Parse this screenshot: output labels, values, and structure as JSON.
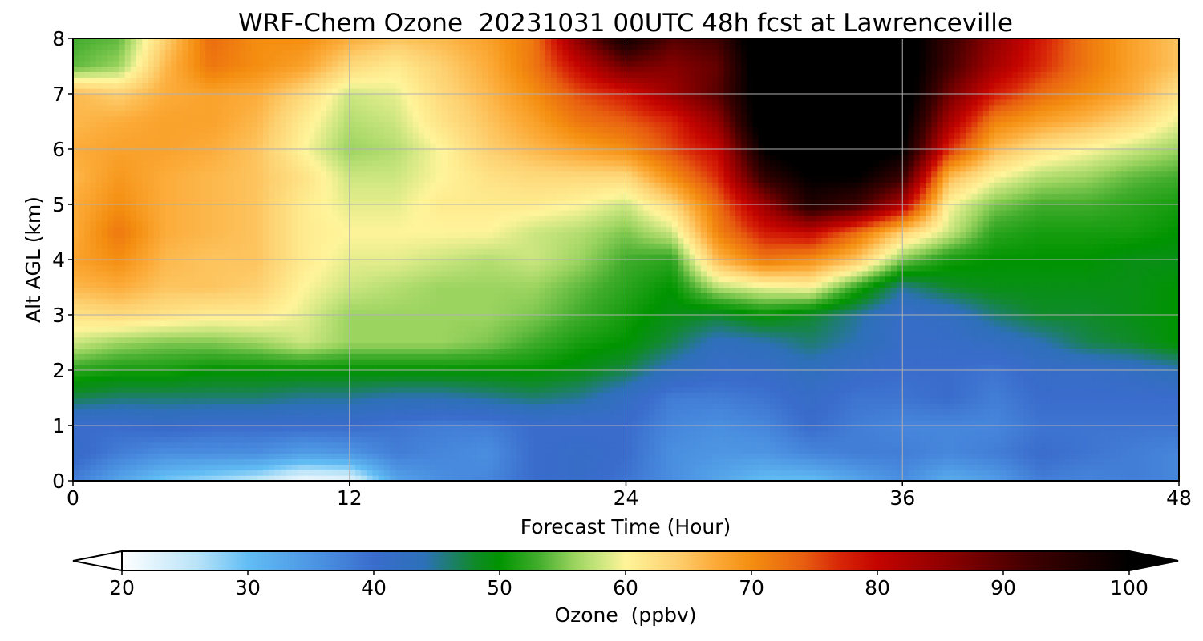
{
  "chart_data": {
    "type": "heatmap",
    "title": "WRF-Chem Ozone  20231031 00UTC 48h fcst at Lawrenceville",
    "xlabel": "Forecast Time (Hour)",
    "ylabel": "Alt AGL (km)",
    "xlim": [
      0,
      48
    ],
    "ylim": [
      0,
      8
    ],
    "x_ticks": [
      "0",
      "12",
      "24",
      "36",
      "48"
    ],
    "y_ticks": [
      "0",
      "1",
      "2",
      "3",
      "4",
      "5",
      "6",
      "7",
      "8"
    ],
    "grid": true,
    "colorbar": {
      "label": "Ozone  (ppbv)",
      "range": [
        20,
        100
      ],
      "ticks": [
        "20",
        "30",
        "40",
        "50",
        "60",
        "70",
        "80",
        "90",
        "100"
      ],
      "extend": "both",
      "placement": "bottom",
      "color_stops": [
        [
          20,
          "#ffffff"
        ],
        [
          26,
          "#b8e3f8"
        ],
        [
          30,
          "#62bdf4"
        ],
        [
          36,
          "#4a8fe0"
        ],
        [
          40,
          "#3a6ccc"
        ],
        [
          44,
          "#2d70b8"
        ],
        [
          48,
          "#108a2a"
        ],
        [
          50,
          "#009400"
        ],
        [
          53,
          "#40ac2c"
        ],
        [
          56,
          "#9cd460"
        ],
        [
          58,
          "#cce680"
        ],
        [
          60,
          "#fff49a"
        ],
        [
          64,
          "#fdd070"
        ],
        [
          67,
          "#fcac3a"
        ],
        [
          70,
          "#f48e10"
        ],
        [
          74,
          "#e86010"
        ],
        [
          77,
          "#d82608"
        ],
        [
          80,
          "#c40400"
        ],
        [
          86,
          "#880000"
        ],
        [
          92,
          "#400000"
        ],
        [
          100,
          "#000000"
        ]
      ]
    },
    "x": [
      0,
      2,
      4,
      6,
      8,
      10,
      12,
      14,
      16,
      18,
      20,
      22,
      24,
      26,
      28,
      30,
      32,
      34,
      36,
      38,
      40,
      42,
      44,
      46,
      48
    ],
    "y": [
      0,
      0.5,
      1,
      1.5,
      2,
      2.5,
      3,
      3.5,
      4,
      4.5,
      5,
      5.5,
      6,
      6.5,
      7,
      7.5,
      8
    ],
    "z": [
      [
        38,
        33,
        29,
        27,
        25,
        21,
        22,
        33,
        36,
        37,
        40,
        41,
        39,
        36,
        33,
        30,
        30,
        33,
        36,
        32,
        34,
        38,
        37,
        38,
        37
      ],
      [
        41,
        38,
        36,
        36,
        36,
        34,
        35,
        38,
        37,
        36,
        40,
        41,
        40,
        36,
        35,
        35,
        37,
        38,
        38,
        37,
        38,
        40,
        39,
        38,
        37
      ],
      [
        40,
        40,
        41,
        40,
        40,
        40,
        40,
        39,
        38,
        38,
        40,
        40,
        40,
        37,
        36,
        37,
        40,
        38,
        37,
        37,
        37,
        39,
        39,
        39,
        39
      ],
      [
        47,
        46,
        46,
        46,
        46,
        45,
        45,
        44,
        44,
        45,
        46,
        45,
        42,
        38,
        38,
        39,
        41,
        39,
        39,
        40,
        38,
        40,
        40,
        40,
        40
      ],
      [
        52,
        51,
        51,
        50,
        50,
        50,
        50,
        50,
        50,
        50,
        50,
        49,
        47,
        43,
        41,
        41,
        43,
        41,
        40,
        40,
        39,
        41,
        41,
        42,
        44
      ],
      [
        58,
        56,
        55,
        55,
        56,
        58,
        56,
        56,
        56,
        55,
        53,
        51,
        50,
        47,
        43,
        44,
        46,
        44,
        41,
        41,
        42,
        44,
        47,
        48,
        50
      ],
      [
        62,
        63,
        62,
        61,
        61,
        59,
        56,
        56,
        56,
        56,
        55,
        53,
        51,
        49,
        48,
        50,
        48,
        45,
        41,
        42,
        46,
        48,
        48,
        49,
        50
      ],
      [
        66,
        67,
        65,
        65,
        64,
        60,
        58,
        57,
        56,
        56,
        56,
        54,
        52,
        50,
        57,
        59,
        60,
        52,
        45,
        48,
        49,
        49,
        49,
        49,
        50
      ],
      [
        68,
        70,
        66,
        65,
        65,
        61,
        59,
        59,
        58,
        57,
        58,
        56,
        53,
        52,
        66,
        72,
        70,
        65,
        55,
        51,
        50,
        50,
        50,
        49,
        49
      ],
      [
        67,
        72,
        67,
        66,
        65,
        61,
        60,
        60,
        60,
        60,
        58,
        57,
        55,
        58,
        71,
        78,
        80,
        73,
        64,
        58,
        52,
        51,
        51,
        51,
        50
      ],
      [
        67,
        70,
        67,
        66,
        65,
        61,
        59,
        59,
        61,
        61,
        61,
        60,
        58,
        63,
        73,
        84,
        96,
        92,
        82,
        60,
        55,
        53,
        53,
        52,
        51
      ],
      [
        66,
        69,
        67,
        66,
        65,
        62,
        58,
        58,
        60,
        62,
        63,
        63,
        63,
        70,
        77,
        94,
        100,
        100,
        93,
        66,
        60,
        57,
        56,
        54,
        53
      ],
      [
        67,
        68,
        68,
        67,
        65,
        60,
        56,
        57,
        60,
        64,
        66,
        68,
        70,
        75,
        80,
        100,
        104,
        104,
        100,
        77,
        66,
        62,
        60,
        58,
        56
      ],
      [
        66,
        67,
        68,
        68,
        66,
        61,
        57,
        58,
        62,
        65,
        68,
        72,
        74,
        77,
        85,
        104,
        106,
        106,
        102,
        83,
        71,
        68,
        66,
        63,
        59
      ],
      [
        66,
        64,
        67,
        68,
        67,
        63,
        58,
        59,
        63,
        66,
        70,
        75,
        78,
        84,
        90,
        104,
        106,
        106,
        104,
        88,
        78,
        73,
        70,
        67,
        62
      ],
      [
        54,
        56,
        66,
        72,
        70,
        68,
        63,
        61,
        64,
        67,
        72,
        80,
        88,
        86,
        89,
        105,
        106,
        106,
        104,
        92,
        83,
        77,
        72,
        68,
        65
      ],
      [
        53,
        54,
        64,
        73,
        70,
        70,
        67,
        65,
        66,
        68,
        72,
        86,
        98,
        90,
        92,
        106,
        106,
        106,
        104,
        93,
        85,
        78,
        72,
        68,
        65
      ]
    ]
  }
}
